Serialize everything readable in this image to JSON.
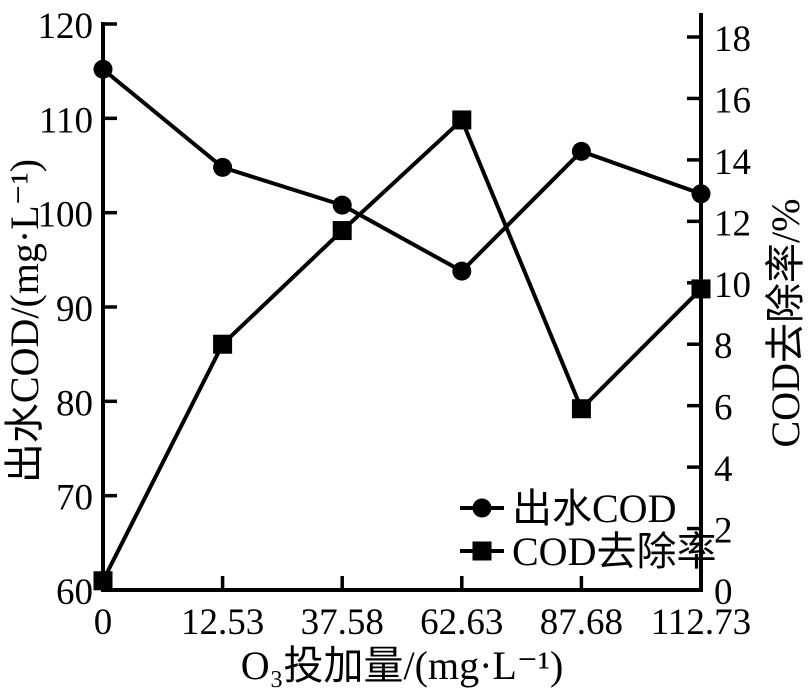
{
  "figure": {
    "background_color": "#ffffff",
    "ink_color": "#000000"
  },
  "chart_data": {
    "type": "line",
    "title": "",
    "xlabel": "O₃投加量/(mg·L⁻¹)",
    "x_tick_labels": [
      "0",
      "12.53",
      "37.58",
      "62.63",
      "87.68",
      "112.73"
    ],
    "x_equally_spaced_ticks": true,
    "grid": false,
    "left_axis": {
      "label": "出水COD/(mg·L⁻¹)",
      "min": 60,
      "max": 120,
      "ticks": [
        60,
        70,
        80,
        90,
        100,
        110,
        120
      ]
    },
    "right_axis": {
      "label": "COD去除率/%",
      "min": 0,
      "max": 18,
      "ticks": [
        0,
        2,
        4,
        6,
        8,
        10,
        12,
        14,
        16,
        18
      ]
    },
    "series": [
      {
        "name": "出水COD",
        "axis": "left",
        "marker": "circle",
        "line_color": "#000000",
        "values": [
          115.2,
          104.8,
          100.8,
          93.8,
          106.5,
          102.0
        ]
      },
      {
        "name": "COD去除率",
        "axis": "right",
        "marker": "square",
        "line_color": "#000000",
        "values": [
          0.3,
          8.0,
          11.7,
          15.3,
          5.9,
          9.8
        ]
      }
    ],
    "legend": {
      "position": "inside-bottom-right",
      "items": [
        "出水COD",
        "COD去除率"
      ]
    }
  }
}
